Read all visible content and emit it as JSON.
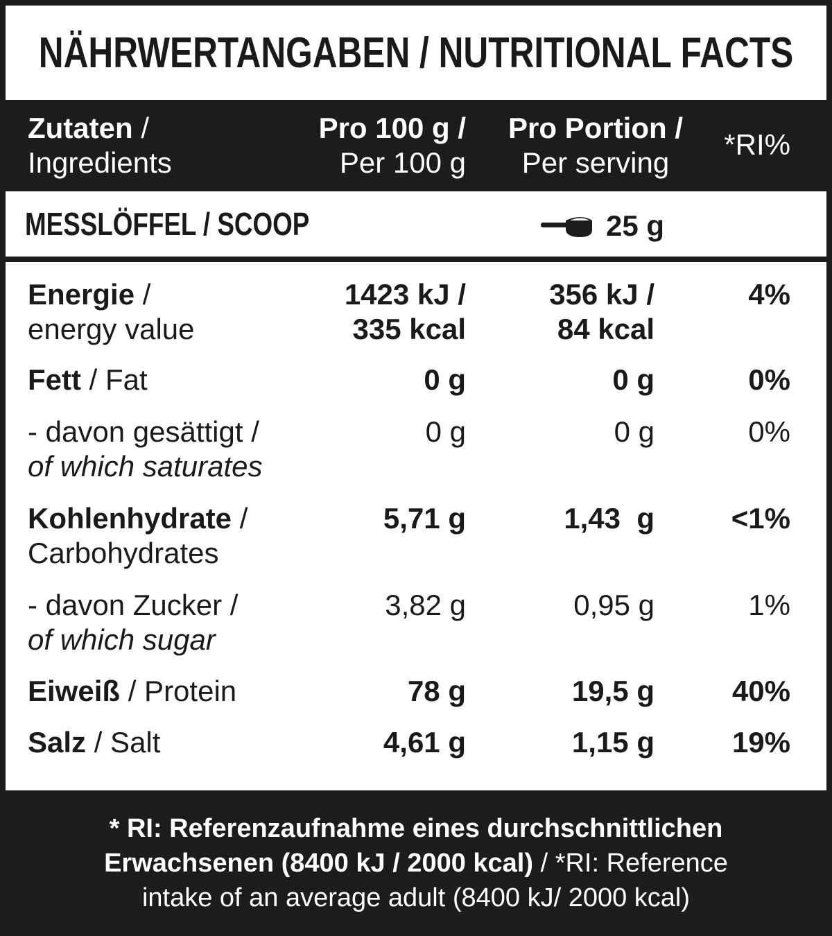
{
  "title": "NÄHRWERTANGABEN / NUTRITIONAL FACTS",
  "header": {
    "col1_a": "Zutaten",
    "col1_sep": " /",
    "col1_b": "Ingredients",
    "col2_a": "Pro 100 g /",
    "col2_b": "Per 100 g",
    "col3_a": "Pro Portion /",
    "col3_b": "Per serving",
    "col4": "*RI%"
  },
  "scoop": {
    "label": "MESSLÖFFEL / SCOOP",
    "icon": "scoop-icon",
    "value": "25 g"
  },
  "rows": [
    {
      "name_de": "Energie",
      "sep": " /",
      "name_en": "energy value",
      "per100_a": "1423 kJ /",
      "per100_b": "335 kcal",
      "serving_a": "356 kJ /",
      "serving_b": "84 kcal",
      "ri": "4%"
    },
    {
      "name_de": "Fett",
      "sep": " / Fat",
      "per100": "0 g",
      "serving": "0 g",
      "ri": "0%"
    },
    {
      "name_de": "- davon gesättigt /",
      "name_en": "of which saturates",
      "per100": "0 g",
      "serving": "0 g",
      "ri": "0%"
    },
    {
      "name_de": "Kohlenhydrate",
      "sep": " /",
      "name_en": "Carbohydrates",
      "per100": "5,71 g",
      "serving": "1,43  g",
      "ri": "<1%"
    },
    {
      "name_de": "- davon Zucker /",
      "name_en": "of which sugar",
      "per100": "3,82 g",
      "serving": "0,95 g",
      "ri": "1%"
    },
    {
      "name_de": "Eiweiß",
      "sep": " / Protein",
      "per100": "78 g",
      "serving": "19,5 g",
      "ri": "40%"
    },
    {
      "name_de": "Salz",
      "sep": " / Salt",
      "per100": "4,61 g",
      "serving": "1,15 g",
      "ri": "19%"
    }
  ],
  "footer": {
    "line1": "* RI: Referenzaufnahme eines durchschnittlichen",
    "line2_bold": "Erwachsenen (8400 kJ / 2000 kcal)",
    "line2_rest": " / *RI: Reference",
    "line3": "intake of an average adult (8400 kJ/ 2000 kcal)"
  },
  "colors": {
    "dark": "#1c1c1c",
    "light": "#ffffff"
  }
}
